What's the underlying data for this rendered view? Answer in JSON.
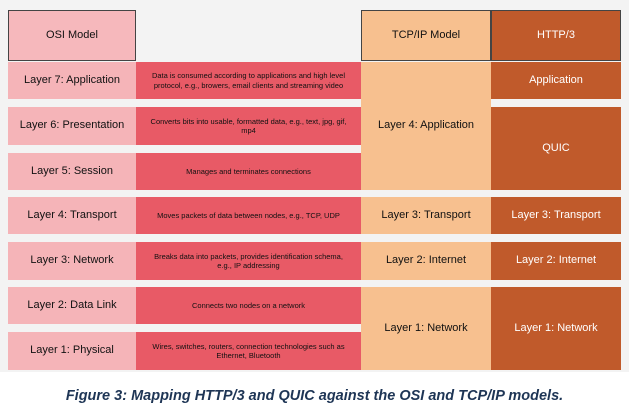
{
  "headers": {
    "osi": "OSI Model",
    "tcpip": "TCP/IP Model",
    "http3": "HTTP/3"
  },
  "osi_layers": [
    {
      "name": "Layer 7: Application",
      "description": "Data is consumed according to applications and high level protocol, e.g., browers, email clients and streaming video"
    },
    {
      "name": "Layer 6: Presentation",
      "description": "Converts bits into usable, formatted data, e.g., text, jpg, gif, mp4"
    },
    {
      "name": "Layer 5: Session",
      "description": "Manages and terminates connections"
    },
    {
      "name": "Layer 4: Transport",
      "description": "Moves packets of data between nodes, e.g., TCP, UDP"
    },
    {
      "name": "Layer 3: Network",
      "description": "Breaks data into packets, provides identification schema, e.g., IP addressing"
    },
    {
      "name": "Layer 2: Data Link",
      "description": "Connects two nodes on a network"
    },
    {
      "name": "Layer 1: Physical",
      "description": "Wires, switches, routers, connection technologies such as Ethernet, Bluetooth"
    }
  ],
  "tcpip_layers": [
    "Layer 4: Application",
    "Layer 3: Transport",
    "Layer 2: Internet",
    "Layer 1: Network"
  ],
  "http3_layers": [
    "Application",
    "QUIC",
    "Layer 3: Transport",
    "Layer 2: Internet",
    "Layer 1: Network"
  ],
  "caption": "Figure 3: Mapping HTTP/3 and QUIC against the OSI and TCP/IP models.",
  "colors": {
    "osi": "#f5b4b8",
    "description": "#e85a66",
    "tcpip": "#f7c08f",
    "http3": "#c05a2b",
    "caption": "#1e3555"
  }
}
